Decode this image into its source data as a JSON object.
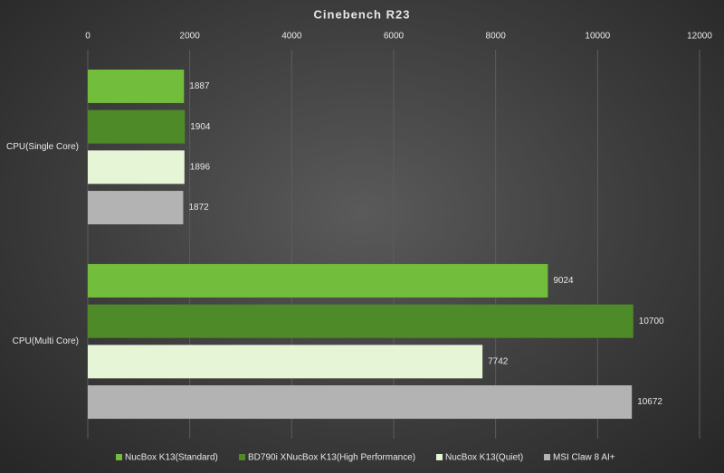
{
  "chart_data": {
    "type": "hbar",
    "title": "Cinebench R23",
    "categories": [
      "CPU(Single Core)",
      "CPU(Multi Core)"
    ],
    "series": [
      {
        "name": "NucBox K13(Standard)",
        "color": "#72bd3c",
        "values": [
          1887,
          9024
        ]
      },
      {
        "name": "BD790i XNucBox K13(High Performance)",
        "color": "#4e8a28",
        "values": [
          1904,
          10700
        ]
      },
      {
        "name": "NucBox K13(Quiet)",
        "color": "#e6f5d6",
        "values": [
          1896,
          7742
        ]
      },
      {
        "name": "MSI Claw 8 AI+",
        "color": "#b3b3b3",
        "values": [
          1872,
          10672
        ]
      }
    ],
    "xlim": [
      0,
      12000
    ],
    "xticks": [
      0,
      2000,
      4000,
      6000,
      8000,
      10000,
      12000
    ],
    "grid": true,
    "legend": "bottom"
  }
}
